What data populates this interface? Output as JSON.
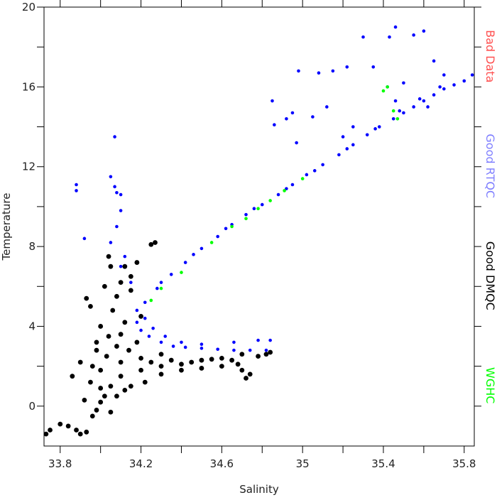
{
  "chart_data": {
    "type": "scatter",
    "xlabel": "Salinity",
    "ylabel": "Temperature",
    "xlim": [
      33.72,
      35.85
    ],
    "ylim": [
      -2,
      20
    ],
    "xticks": [
      33.8,
      34.2,
      34.6,
      35.0,
      35.4,
      35.8
    ],
    "xminorticks": [
      34.0,
      34.4,
      34.8,
      35.2,
      35.6
    ],
    "yticks": [
      0,
      4,
      8,
      12,
      16,
      20
    ],
    "yminorticks": [
      2,
      6,
      10,
      14,
      18
    ],
    "series": [
      {
        "name": "Bad Data",
        "color": "#ff5050",
        "x": [],
        "y": []
      },
      {
        "name": "Good RTQC",
        "color": "#0000ff",
        "x": [
          34.22,
          34.28,
          34.35,
          34.42,
          34.5,
          34.58,
          34.65,
          34.72,
          34.8,
          34.88,
          34.95,
          35.02,
          35.1,
          35.18,
          35.25,
          35.32,
          35.38,
          35.45,
          35.5,
          35.55,
          35.6,
          35.65,
          35.7,
          35.75,
          35.8,
          35.84,
          34.3,
          34.46,
          34.62,
          34.76,
          34.92,
          35.06,
          35.22,
          35.36,
          35.48,
          35.58,
          35.62,
          35.68,
          35.3,
          35.22,
          35.15,
          35.08,
          34.98,
          34.95,
          34.92,
          34.85,
          34.86,
          35.43,
          35.46,
          35.55,
          35.6,
          35.65,
          35.7,
          35.42,
          35.46,
          35.5,
          35.35,
          35.25,
          35.2,
          35.12,
          35.05,
          34.97,
          34.05,
          34.07,
          34.08,
          34.1,
          34.07,
          33.88,
          33.88,
          34.1,
          34.08,
          34.05,
          34.12,
          34.1,
          33.92,
          34.15,
          34.18,
          34.18,
          34.2,
          34.24,
          34.3,
          34.36,
          34.42,
          34.5,
          34.58,
          34.66,
          34.74,
          34.82,
          34.66,
          34.78,
          34.84,
          34.26,
          34.32,
          34.4,
          34.22,
          34.5
        ],
        "y": [
          5.2,
          5.9,
          6.6,
          7.2,
          7.9,
          8.5,
          9.1,
          9.6,
          10.1,
          10.6,
          11.1,
          11.6,
          12.1,
          12.6,
          13.1,
          13.6,
          14.0,
          14.4,
          14.7,
          15.0,
          15.3,
          15.6,
          15.9,
          16.1,
          16.3,
          16.6,
          6.2,
          7.6,
          8.9,
          9.9,
          10.9,
          11.8,
          12.9,
          13.9,
          14.8,
          15.4,
          15.0,
          16.0,
          18.5,
          17.0,
          16.8,
          16.7,
          16.8,
          14.7,
          14.4,
          15.3,
          14.1,
          18.5,
          19.0,
          18.6,
          18.8,
          17.3,
          16.6,
          16.0,
          15.3,
          16.2,
          17.0,
          14.0,
          13.5,
          15.0,
          14.5,
          13.2,
          11.5,
          11.0,
          10.7,
          10.6,
          13.5,
          11.1,
          10.8,
          9.8,
          9.0,
          8.2,
          7.5,
          7.0,
          8.4,
          6.2,
          4.8,
          4.2,
          3.8,
          3.5,
          3.2,
          3.0,
          2.95,
          2.9,
          2.85,
          2.8,
          2.8,
          2.8,
          3.2,
          3.3,
          3.3,
          3.9,
          3.5,
          3.2,
          4.4,
          3.1
        ]
      },
      {
        "name": "Good DMQC",
        "color": "#000000",
        "x": [
          33.73,
          33.75,
          33.8,
          33.84,
          33.88,
          33.9,
          33.93,
          33.96,
          34.0,
          33.92,
          33.98,
          34.02,
          34.05,
          33.95,
          34.0,
          33.9,
          33.86,
          34.03,
          34.08,
          34.1,
          34.12,
          34.06,
          34.08,
          34.1,
          34.05,
          34.04,
          34.12,
          34.15,
          34.15,
          34.2,
          34.25,
          34.27,
          34.18,
          33.93,
          33.95,
          33.98,
          34.0,
          34.02,
          34.14,
          34.2,
          34.25,
          34.3,
          34.35,
          34.4,
          34.45,
          34.5,
          34.55,
          34.6,
          34.65,
          34.68,
          34.7,
          34.72,
          34.74,
          34.7,
          34.78,
          34.82,
          34.84,
          34.1,
          34.15,
          34.2,
          34.22,
          34.3,
          34.05,
          34.08,
          34.12,
          33.98,
          34.04,
          34.1,
          34.18,
          34.3,
          34.4,
          34.5,
          34.6,
          33.96,
          34.0
        ],
        "y": [
          -1.4,
          -1.2,
          -0.9,
          -1.0,
          -1.2,
          -1.4,
          -1.3,
          -0.5,
          0.2,
          0.3,
          -0.2,
          0.5,
          1.0,
          1.2,
          1.8,
          2.2,
          1.5,
          2.5,
          3.0,
          3.6,
          4.2,
          4.8,
          5.5,
          6.2,
          7.0,
          7.5,
          7.0,
          6.5,
          5.8,
          4.5,
          8.1,
          8.2,
          7.2,
          5.4,
          5.0,
          3.2,
          4.0,
          6.0,
          2.8,
          2.4,
          2.2,
          2.0,
          2.3,
          2.1,
          2.2,
          2.3,
          2.35,
          2.4,
          2.3,
          2.1,
          1.8,
          1.4,
          1.6,
          2.6,
          2.5,
          2.6,
          2.7,
          1.5,
          1.0,
          1.8,
          1.2,
          1.6,
          -0.3,
          0.5,
          0.8,
          2.8,
          3.5,
          2.2,
          3.2,
          2.6,
          1.8,
          1.9,
          2.0,
          2.0,
          0.9
        ]
      },
      {
        "name": "WGHC",
        "color": "#00ff00",
        "x": [
          34.25,
          34.3,
          34.4,
          34.55,
          34.65,
          34.72,
          34.78,
          34.84,
          34.91,
          35.0,
          35.4,
          35.42,
          35.45,
          35.47
        ],
        "y": [
          5.3,
          5.9,
          6.7,
          8.2,
          9.0,
          9.4,
          9.9,
          10.3,
          10.8,
          11.4,
          15.8,
          16.0,
          14.8,
          14.4
        ]
      }
    ]
  }
}
